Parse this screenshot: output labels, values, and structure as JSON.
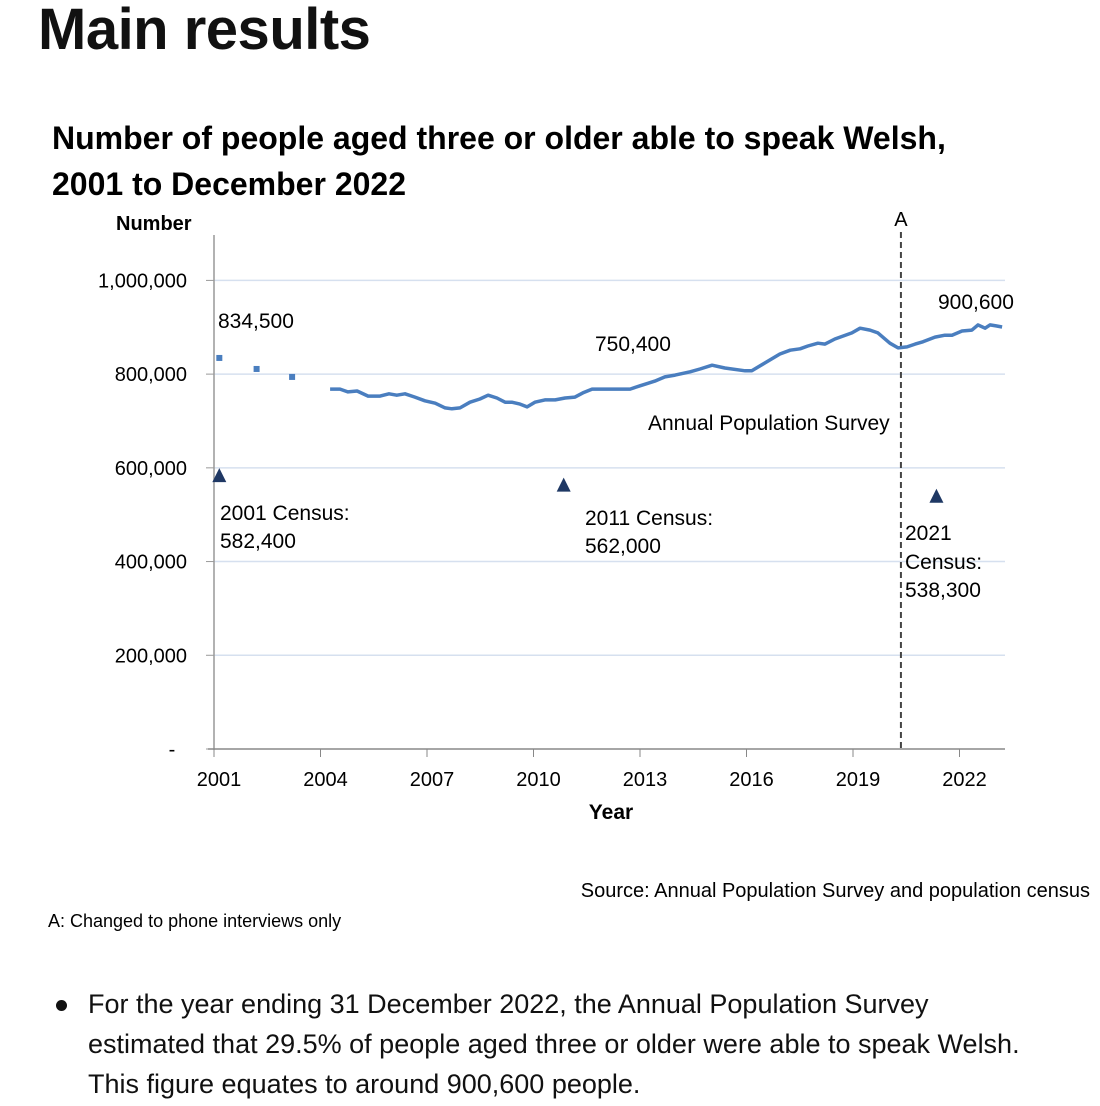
{
  "heading": "Main results",
  "chart_data": {
    "type": "line",
    "title_lines": [
      "Number of people aged three or older able to speak Welsh,",
      "2001 to December 2022"
    ],
    "ylabel": "Number",
    "xlabel": "Year",
    "ylim": [
      0,
      1000000
    ],
    "yticks": [
      0,
      200000,
      400000,
      600000,
      800000,
      1000000
    ],
    "ytick_labels": [
      "-",
      "200,000",
      "400,000",
      "600,000",
      "800,000",
      "1,000,000"
    ],
    "xticks": [
      2001,
      2004,
      2007,
      2010,
      2013,
      2016,
      2019,
      2022
    ],
    "xtick_labels": [
      "2001",
      "2004",
      "2007",
      "2010",
      "2013",
      "2016",
      "2019",
      "2022"
    ],
    "grid": true,
    "colors": {
      "survey": "#4a7ebf",
      "census": "#1f3864",
      "grid": "#d6e0ef"
    },
    "early_points": [
      [
        2001.15,
        834500
      ],
      [
        2002.2,
        811000
      ],
      [
        2003.2,
        794000
      ]
    ],
    "survey_series": [
      [
        2004.27,
        768000
      ],
      [
        2004.55,
        768000
      ],
      [
        2004.77,
        762000
      ],
      [
        2005.03,
        764000
      ],
      [
        2005.34,
        753000
      ],
      [
        2005.68,
        753000
      ],
      [
        2005.93,
        758000
      ],
      [
        2006.15,
        755000
      ],
      [
        2006.38,
        758000
      ],
      [
        2006.66,
        751000
      ],
      [
        2006.94,
        743000
      ],
      [
        2007.23,
        738000
      ],
      [
        2007.51,
        728000
      ],
      [
        2007.7,
        726000
      ],
      [
        2007.93,
        728000
      ],
      [
        2008.21,
        740000
      ],
      [
        2008.49,
        747000
      ],
      [
        2008.72,
        755000
      ],
      [
        2008.97,
        749000
      ],
      [
        2009.2,
        740000
      ],
      [
        2009.39,
        740000
      ],
      [
        2009.62,
        736000
      ],
      [
        2009.82,
        730000
      ],
      [
        2010.04,
        740000
      ],
      [
        2010.32,
        745000
      ],
      [
        2010.61,
        745000
      ],
      [
        2010.89,
        749000
      ],
      [
        2011.17,
        751000
      ],
      [
        2011.39,
        760000
      ],
      [
        2011.65,
        768000
      ],
      [
        2012.72,
        768000
      ],
      [
        2013.0,
        775000
      ],
      [
        2013.42,
        785000
      ],
      [
        2013.7,
        794000
      ],
      [
        2013.99,
        798000
      ],
      [
        2014.41,
        805000
      ],
      [
        2014.69,
        811000
      ],
      [
        2015.03,
        819000
      ],
      [
        2015.39,
        813000
      ],
      [
        2015.96,
        807000
      ],
      [
        2016.15,
        807000
      ],
      [
        2016.52,
        824000
      ],
      [
        2016.94,
        843000
      ],
      [
        2017.23,
        851000
      ],
      [
        2017.51,
        854000
      ],
      [
        2017.73,
        860000
      ],
      [
        2018.01,
        866000
      ],
      [
        2018.21,
        864000
      ],
      [
        2018.49,
        875000
      ],
      [
        2018.97,
        888000
      ],
      [
        2019.2,
        898000
      ],
      [
        2019.48,
        894000
      ],
      [
        2019.7,
        888000
      ],
      [
        2020.04,
        866000
      ],
      [
        2020.27,
        856000
      ],
      [
        2020.52,
        858000
      ],
      [
        2020.75,
        864000
      ],
      [
        2020.97,
        869000
      ],
      [
        2021.31,
        879000
      ],
      [
        2021.59,
        883000
      ],
      [
        2021.79,
        883000
      ],
      [
        2022.07,
        892000
      ],
      [
        2022.35,
        894000
      ],
      [
        2022.52,
        905000
      ],
      [
        2022.72,
        898000
      ],
      [
        2022.86,
        905000
      ],
      [
        2023.03,
        903000
      ],
      [
        2023.2,
        900600
      ]
    ],
    "census_points": [
      [
        2001.15,
        582400
      ],
      [
        2010.85,
        562000
      ],
      [
        2021.35,
        538300
      ]
    ],
    "marker_line": {
      "x": 2020.35,
      "label": "A"
    },
    "annotations": {
      "first": "834,500",
      "mid": "750,400",
      "last": "900,600",
      "series_label": "Annual Population Survey",
      "census_2001": [
        "2001 Census:",
        "582,400"
      ],
      "census_2011": [
        "2011 Census:",
        "562,000"
      ],
      "census_2021": [
        "2021",
        "Census:",
        "538,300"
      ]
    },
    "source": "Source: Annual Population Survey and population census",
    "footnote": "A: Changed to phone interviews only"
  },
  "bullets": [
    "For the year ending 31 December 2022, the Annual Population Survey estimated that 29.5% of people aged three or older were able to speak Welsh. This figure equates to around 900,600 people."
  ]
}
